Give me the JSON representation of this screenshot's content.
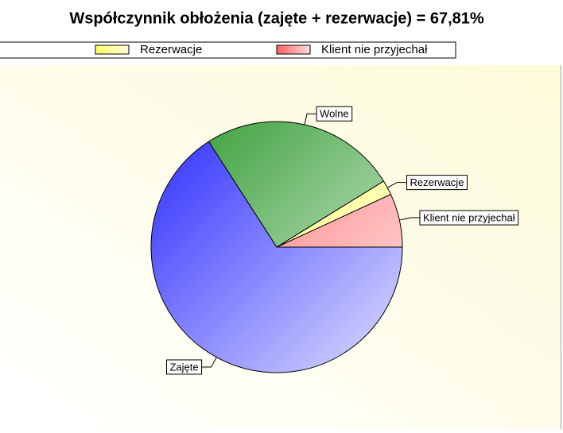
{
  "chart_data": {
    "type": "pie",
    "title": "Współczynnik obłożenia (zajęte + rezerwacje) = 67,81%",
    "series": [
      {
        "name": "Zajęte",
        "color": "#2a2aff",
        "value": 65.9
      },
      {
        "name": "Wolne",
        "color": "#2e9a2e",
        "value": 25.3
      },
      {
        "name": "Rezerwacje",
        "color": "#ffff60",
        "value": 1.91
      },
      {
        "name": "Klient nie przyjechał",
        "color": "#ff6060",
        "value": 6.89
      }
    ],
    "legend_entries": [
      "Rezerwacje",
      "Klient nie przyjechał"
    ]
  }
}
